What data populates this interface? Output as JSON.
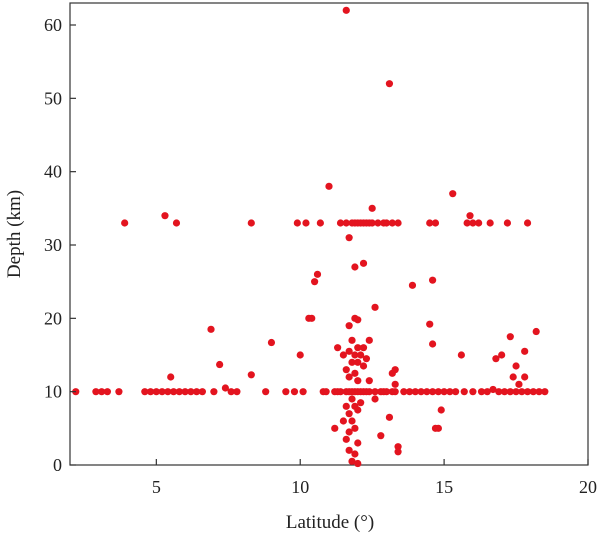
{
  "chart_data": {
    "type": "scatter",
    "title": "",
    "xlabel": "Latitude (°)",
    "ylabel": "Depth (km)",
    "xlim": [
      2,
      20
    ],
    "ylim": [
      0,
      63
    ],
    "xticks": [
      5,
      10,
      15,
      20
    ],
    "yticks": [
      0,
      10,
      20,
      30,
      40,
      50,
      60
    ],
    "grid": false,
    "legend": "none",
    "marker_color": "#e3141f",
    "series": [
      {
        "values": [
          [
            2.2,
            10
          ],
          [
            2.9,
            10
          ],
          [
            3.1,
            10
          ],
          [
            3.3,
            10
          ],
          [
            3.7,
            10
          ],
          [
            3.9,
            33
          ],
          [
            4.6,
            10
          ],
          [
            4.8,
            10
          ],
          [
            5.0,
            10
          ],
          [
            5.2,
            10
          ],
          [
            5.3,
            34
          ],
          [
            5.4,
            10
          ],
          [
            5.5,
            12
          ],
          [
            5.6,
            10
          ],
          [
            5.7,
            33
          ],
          [
            5.8,
            10
          ],
          [
            6.0,
            10
          ],
          [
            6.2,
            10
          ],
          [
            6.4,
            10
          ],
          [
            6.6,
            10
          ],
          [
            6.9,
            18.5
          ],
          [
            7.0,
            10
          ],
          [
            7.2,
            13.7
          ],
          [
            7.4,
            10.5
          ],
          [
            7.6,
            10
          ],
          [
            7.8,
            10
          ],
          [
            8.3,
            33
          ],
          [
            8.3,
            12.3
          ],
          [
            8.8,
            10
          ],
          [
            9.0,
            16.7
          ],
          [
            9.5,
            10
          ],
          [
            9.8,
            10
          ],
          [
            9.9,
            33
          ],
          [
            10.0,
            15
          ],
          [
            10.1,
            10
          ],
          [
            10.2,
            33
          ],
          [
            10.3,
            20
          ],
          [
            10.4,
            20
          ],
          [
            10.5,
            25
          ],
          [
            10.6,
            26
          ],
          [
            10.7,
            33
          ],
          [
            10.8,
            10
          ],
          [
            10.9,
            10
          ],
          [
            11.0,
            38
          ],
          [
            11.2,
            10
          ],
          [
            11.2,
            5
          ],
          [
            11.3,
            10
          ],
          [
            11.3,
            16
          ],
          [
            11.4,
            33
          ],
          [
            11.4,
            10
          ],
          [
            11.5,
            15
          ],
          [
            11.5,
            6
          ],
          [
            11.6,
            62
          ],
          [
            11.6,
            33
          ],
          [
            11.6,
            10
          ],
          [
            11.6,
            13
          ],
          [
            11.6,
            8
          ],
          [
            11.6,
            3.5
          ],
          [
            11.7,
            31
          ],
          [
            11.7,
            19
          ],
          [
            11.7,
            15.5
          ],
          [
            11.7,
            12
          ],
          [
            11.7,
            10
          ],
          [
            11.7,
            7
          ],
          [
            11.7,
            4.5
          ],
          [
            11.7,
            2
          ],
          [
            11.8,
            33
          ],
          [
            11.8,
            17
          ],
          [
            11.8,
            14
          ],
          [
            11.8,
            10
          ],
          [
            11.8,
            9
          ],
          [
            11.8,
            6
          ],
          [
            11.8,
            0.5
          ],
          [
            11.9,
            33
          ],
          [
            11.9,
            27
          ],
          [
            11.9,
            20
          ],
          [
            11.9,
            15
          ],
          [
            11.9,
            12.5
          ],
          [
            11.9,
            10
          ],
          [
            11.9,
            8
          ],
          [
            11.9,
            5
          ],
          [
            11.9,
            1.5
          ],
          [
            12.0,
            33
          ],
          [
            12.0,
            19.8
          ],
          [
            12.0,
            16
          ],
          [
            12.0,
            14
          ],
          [
            12.0,
            11.5
          ],
          [
            12.0,
            10
          ],
          [
            12.0,
            7.5
          ],
          [
            12.0,
            3
          ],
          [
            12.0,
            0.2
          ],
          [
            12.1,
            33
          ],
          [
            12.1,
            15
          ],
          [
            12.1,
            10
          ],
          [
            12.1,
            8.5
          ],
          [
            12.2,
            33
          ],
          [
            12.2,
            27.5
          ],
          [
            12.2,
            16
          ],
          [
            12.2,
            13.5
          ],
          [
            12.2,
            10
          ],
          [
            12.3,
            33
          ],
          [
            12.3,
            14.5
          ],
          [
            12.3,
            10
          ],
          [
            12.4,
            33
          ],
          [
            12.4,
            17
          ],
          [
            12.4,
            11.5
          ],
          [
            12.4,
            10
          ],
          [
            12.5,
            35
          ],
          [
            12.5,
            33
          ],
          [
            12.6,
            21.5
          ],
          [
            12.6,
            10
          ],
          [
            12.6,
            9
          ],
          [
            12.7,
            33
          ],
          [
            12.8,
            10
          ],
          [
            12.8,
            4
          ],
          [
            12.9,
            33
          ],
          [
            12.9,
            10
          ],
          [
            13.0,
            33
          ],
          [
            13.0,
            10
          ],
          [
            13.1,
            52
          ],
          [
            13.1,
            6.5
          ],
          [
            13.2,
            33
          ],
          [
            13.2,
            12.5
          ],
          [
            13.2,
            10
          ],
          [
            13.3,
            13
          ],
          [
            13.3,
            11
          ],
          [
            13.3,
            10
          ],
          [
            13.4,
            33
          ],
          [
            13.4,
            2.5
          ],
          [
            13.4,
            1.8
          ],
          [
            13.6,
            10
          ],
          [
            13.8,
            10
          ],
          [
            13.9,
            24.5
          ],
          [
            14.0,
            10
          ],
          [
            14.2,
            10
          ],
          [
            14.4,
            10
          ],
          [
            14.5,
            33
          ],
          [
            14.5,
            19.2
          ],
          [
            14.6,
            25.2
          ],
          [
            14.6,
            16.5
          ],
          [
            14.6,
            10
          ],
          [
            14.7,
            33
          ],
          [
            14.7,
            5
          ],
          [
            14.8,
            10
          ],
          [
            14.8,
            5
          ],
          [
            14.9,
            7.5
          ],
          [
            15.0,
            10
          ],
          [
            15.2,
            10
          ],
          [
            15.3,
            37
          ],
          [
            15.4,
            10
          ],
          [
            15.6,
            15
          ],
          [
            15.7,
            10
          ],
          [
            15.8,
            33
          ],
          [
            15.9,
            34
          ],
          [
            16.0,
            33
          ],
          [
            16.0,
            10
          ],
          [
            16.2,
            33
          ],
          [
            16.3,
            10
          ],
          [
            16.5,
            10
          ],
          [
            16.6,
            33
          ],
          [
            16.7,
            10.3
          ],
          [
            16.8,
            14.5
          ],
          [
            16.9,
            10
          ],
          [
            17.0,
            15
          ],
          [
            17.1,
            10
          ],
          [
            17.2,
            33
          ],
          [
            17.3,
            17.5
          ],
          [
            17.3,
            10
          ],
          [
            17.4,
            12
          ],
          [
            17.5,
            13.5
          ],
          [
            17.5,
            10
          ],
          [
            17.6,
            11
          ],
          [
            17.7,
            10
          ],
          [
            17.8,
            15.5
          ],
          [
            17.8,
            12
          ],
          [
            17.9,
            33
          ],
          [
            17.9,
            10
          ],
          [
            18.1,
            10
          ],
          [
            18.2,
            18.2
          ],
          [
            18.3,
            10
          ],
          [
            18.5,
            10
          ]
        ]
      }
    ]
  }
}
